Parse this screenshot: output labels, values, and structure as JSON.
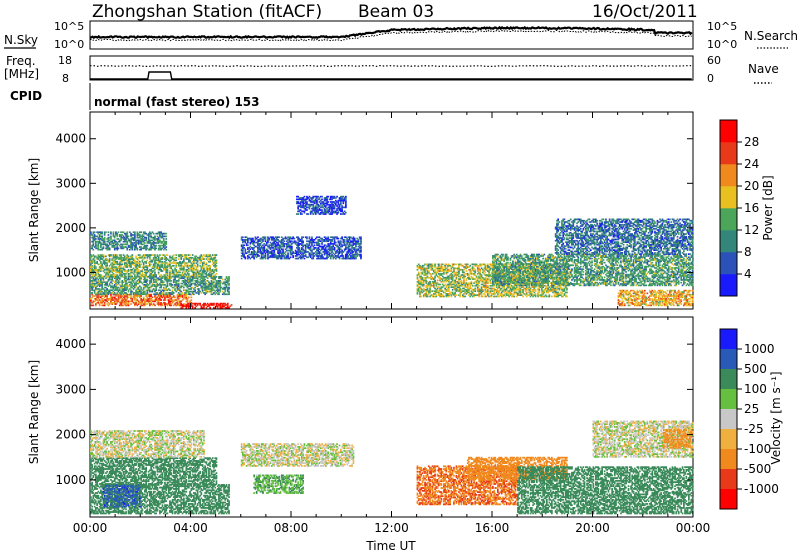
{
  "header": {
    "station": "Zhongshan Station (fitACF)",
    "beam": "Beam 03",
    "date": "16/Oct/2011"
  },
  "status_panels": {
    "nsky_label": "N.Sky",
    "nsky_ticks": [
      "10^5",
      "10^0"
    ],
    "nsearch_label": "N.Search",
    "nsearch_ticks": [
      "10^5",
      "10^0"
    ],
    "freq_label_line1": "Freq.",
    "freq_label_line2": "[MHz]",
    "freq_ticks": [
      "18",
      "8"
    ],
    "nave_label": "Nave",
    "nave_ticks": [
      "60",
      "0"
    ],
    "cpid_label": "CPID",
    "cpid_text": "normal (fast stereo) 153"
  },
  "chart_data": [
    {
      "type": "heatmap",
      "panel": "power",
      "ylabel": "Slant Range [km]",
      "xlabel": "",
      "x_tick_labels": [
        "00:00",
        "04:00",
        "08:00",
        "12:00",
        "16:00",
        "20:00",
        "00:00"
      ],
      "x_range_hours": [
        0,
        24
      ],
      "ylim": [
        180,
        4600
      ],
      "y_ticks": [
        1000,
        2000,
        3000,
        4000
      ],
      "colorbar": {
        "label": "Power [dB]",
        "ticks": [
          "4",
          "8",
          "12",
          "16",
          "20",
          "24",
          "28"
        ],
        "colors": [
          "#1a1aff",
          "#2a52b8",
          "#33877a",
          "#4ca65a",
          "#e8c020",
          "#f08a1e",
          "#e83a1a",
          "#ff0000"
        ]
      },
      "regions": [
        {
          "t": [
            0.0,
            4.0
          ],
          "r": [
            250,
            500
          ],
          "value": 24
        },
        {
          "t": [
            3.6,
            5.6
          ],
          "r": [
            200,
            320
          ],
          "value": 30
        },
        {
          "t": [
            0.0,
            5.5
          ],
          "r": [
            500,
            900
          ],
          "value": 12
        },
        {
          "t": [
            0.0,
            5.0
          ],
          "r": [
            900,
            1400
          ],
          "value": 14
        },
        {
          "t": [
            0.0,
            3.0
          ],
          "r": [
            1500,
            1900
          ],
          "value": 10
        },
        {
          "t": [
            6.0,
            10.8
          ],
          "r": [
            1300,
            1800
          ],
          "value": 6
        },
        {
          "t": [
            8.2,
            10.2
          ],
          "r": [
            2300,
            2700
          ],
          "value": 5
        },
        {
          "t": [
            13.0,
            19.0
          ],
          "r": [
            450,
            1200
          ],
          "value": 16
        },
        {
          "t": [
            16.0,
            24.0
          ],
          "r": [
            700,
            1400
          ],
          "value": 12
        },
        {
          "t": [
            18.5,
            24.0
          ],
          "r": [
            1400,
            2200
          ],
          "value": 8
        },
        {
          "t": [
            21.0,
            24.0
          ],
          "r": [
            250,
            600
          ],
          "value": 20
        }
      ]
    },
    {
      "type": "heatmap",
      "panel": "velocity",
      "ylabel": "Slant Range [km]",
      "xlabel": "Time UT",
      "x_tick_labels": [
        "00:00",
        "04:00",
        "08:00",
        "12:00",
        "16:00",
        "20:00",
        "00:00"
      ],
      "x_range_hours": [
        0,
        24
      ],
      "ylim": [
        180,
        4600
      ],
      "y_ticks": [
        1000,
        2000,
        3000,
        4000
      ],
      "colorbar": {
        "label": "Velocity [m s⁻¹]",
        "ticks": [
          "1000",
          "500",
          "100",
          "25",
          "-25",
          "-100",
          "-500",
          "-1000"
        ],
        "colors": [
          "#1a1aff",
          "#2a5ab8",
          "#3a8a5a",
          "#66c040",
          "#c8c8c8",
          "#f0b040",
          "#f08a1e",
          "#e83a1a",
          "#ff0000"
        ]
      },
      "regions": [
        {
          "t": [
            0.0,
            5.5
          ],
          "r": [
            250,
            900
          ],
          "value": 300
        },
        {
          "t": [
            0.5,
            2.0
          ],
          "r": [
            400,
            900
          ],
          "value": 700
        },
        {
          "t": [
            0.0,
            5.0
          ],
          "r": [
            900,
            1500
          ],
          "value": 200
        },
        {
          "t": [
            0.0,
            4.5
          ],
          "r": [
            1500,
            2100
          ],
          "value": 0
        },
        {
          "t": [
            6.0,
            10.5
          ],
          "r": [
            1300,
            1800
          ],
          "value": 0
        },
        {
          "t": [
            6.5,
            8.5
          ],
          "r": [
            700,
            1100
          ],
          "value": 80
        },
        {
          "t": [
            13.0,
            17.0
          ],
          "r": [
            450,
            1300
          ],
          "value": -450
        },
        {
          "t": [
            15.0,
            19.0
          ],
          "r": [
            1000,
            1500
          ],
          "value": -200
        },
        {
          "t": [
            17.0,
            24.0
          ],
          "r": [
            250,
            1300
          ],
          "value": 250
        },
        {
          "t": [
            20.0,
            24.0
          ],
          "r": [
            1500,
            2300
          ],
          "value": 0
        },
        {
          "t": [
            22.8,
            24.0
          ],
          "r": [
            1700,
            2100
          ],
          "value": -150
        }
      ]
    }
  ]
}
